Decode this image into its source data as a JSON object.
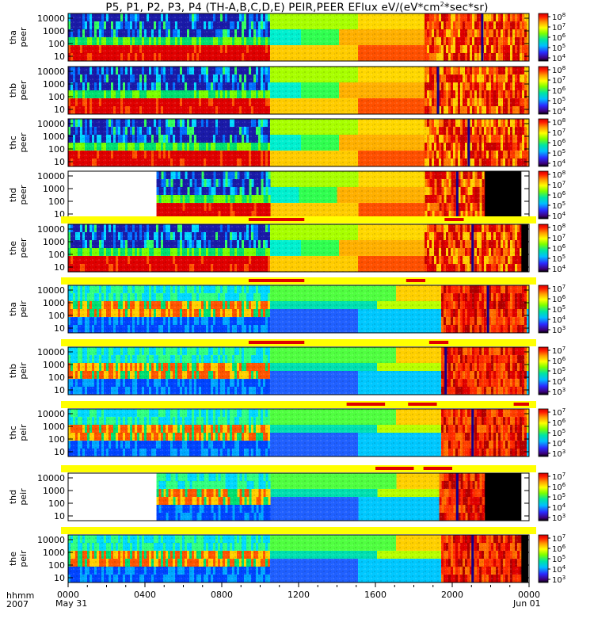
{
  "chart_data": {
    "type": "heatmap",
    "title_prefix": "P5, P1, P2, P3, P4 (TH-A,B,C,D,E) PEIR,PEER EFlux eV/(eV*cm",
    "title_sup": "2",
    "title_suffix": "*sec*sr)",
    "x_axis": {
      "row_labels": [
        "hhmm",
        "2007"
      ],
      "ticks": [
        "0000",
        "0400",
        "0800",
        "1200",
        "1600",
        "2000",
        "0000"
      ],
      "date_labels": [
        "May 31",
        "Jun 01"
      ],
      "minor_per_major": 4,
      "range_hours": [
        0,
        24
      ]
    },
    "y_ticks": [
      "10000",
      "1000",
      "100",
      "10"
    ],
    "cbar_electron": [
      "10^8",
      "10^7",
      "10^6",
      "10^5",
      "10^4"
    ],
    "cbar_ion": [
      "10^7",
      "10^6",
      "10^5",
      "10^4",
      "10^3"
    ],
    "panels": [
      {
        "label1": "tha",
        "label2": "peer",
        "kind": "peer",
        "data_start": 0,
        "data_end": 24,
        "dropout_hours": [
          21.5
        ],
        "interval_bars": []
      },
      {
        "label1": "thb",
        "label2": "peer",
        "kind": "peer",
        "data_start": 0,
        "data_end": 24,
        "dropout_hours": [
          19.2
        ],
        "interval_bars": []
      },
      {
        "label1": "thc",
        "label2": "peer",
        "kind": "peer",
        "data_start": 0,
        "data_end": 24,
        "dropout_hours": [
          20.8
        ],
        "interval_bars": []
      },
      {
        "label1": "thd",
        "label2": "peer",
        "kind": "peer",
        "data_start": 4.6,
        "data_end": 21.7,
        "dropout_hours": [
          20.2
        ],
        "interval_bars": []
      },
      {
        "label1": "the",
        "label2": "peer",
        "kind": "peer",
        "data_start": 0,
        "data_end": 23.6,
        "dropout_hours": [
          21.0
        ],
        "interval_bars": [
          [
            9.4,
            12.3
          ],
          [
            19.6,
            20.6
          ]
        ]
      },
      {
        "label1": "tha",
        "label2": "peir",
        "kind": "peir",
        "data_start": 0,
        "data_end": 24,
        "dropout_hours": [
          21.8
        ],
        "interval_bars": [
          [
            9.4,
            12.3
          ],
          [
            17.6,
            18.6
          ]
        ]
      },
      {
        "label1": "thb",
        "label2": "peir",
        "kind": "peir",
        "data_start": 0,
        "data_end": 24,
        "dropout_hours": [
          19.6
        ],
        "interval_bars": [
          [
            9.4,
            12.3
          ],
          [
            18.8,
            19.8
          ]
        ]
      },
      {
        "label1": "thc",
        "label2": "peir",
        "kind": "peir",
        "data_start": 0,
        "data_end": 24,
        "dropout_hours": [
          21.0
        ],
        "interval_bars": [
          [
            14.5,
            16.5
          ],
          [
            17.7,
            19.2
          ],
          [
            23.2,
            24.0
          ]
        ]
      },
      {
        "label1": "thd",
        "label2": "peir",
        "kind": "peir",
        "data_start": 4.6,
        "data_end": 21.7,
        "dropout_hours": [
          20.2
        ],
        "interval_bars": [
          [
            16.0,
            18.0
          ],
          [
            18.5,
            20.0
          ]
        ]
      },
      {
        "label1": "the",
        "label2": "peir",
        "kind": "peir",
        "data_start": 0,
        "data_end": 23.6,
        "dropout_hours": [
          21.0
        ],
        "interval_bars": []
      }
    ]
  }
}
